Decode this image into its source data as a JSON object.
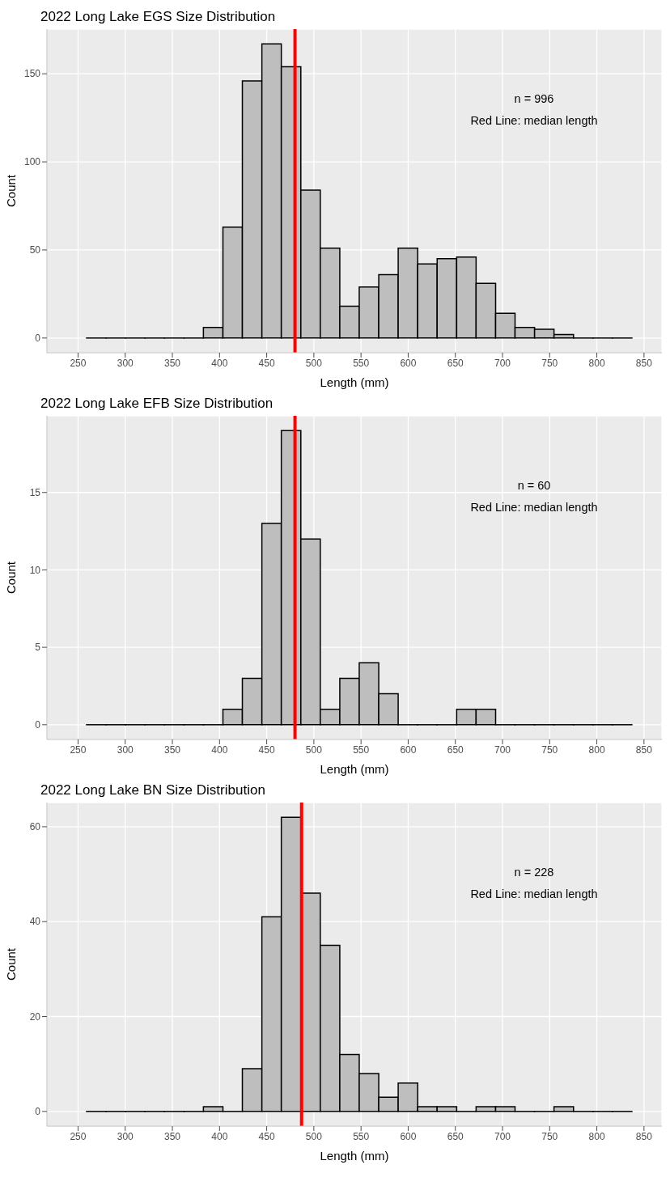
{
  "chart_data": [
    {
      "type": "histogram",
      "title": "2022 Long Lake EGS Size Distribution",
      "xlabel": "Length (mm)",
      "ylabel": "Count",
      "bins": [
        259,
        279.7,
        300.3,
        321,
        341.6,
        362.3,
        382.9,
        403.6,
        424.2,
        444.9,
        465.5,
        486.2,
        506.8,
        527.5,
        548.1,
        568.8,
        589.4,
        610.1,
        630.7,
        651.4,
        672,
        692.7,
        713.3,
        734,
        754.6,
        775.3,
        795.9,
        816.6,
        837.2
      ],
      "values": [
        0,
        0,
        0,
        0,
        0,
        0,
        6,
        63,
        146,
        167,
        154,
        84,
        51,
        18,
        29,
        36,
        51,
        42,
        45,
        46,
        31,
        14,
        6,
        5,
        2,
        0,
        0,
        0
      ],
      "color": "#bebebe",
      "xlim": [
        217,
        869
      ],
      "xticks": [
        250,
        300,
        350,
        400,
        450,
        500,
        550,
        600,
        650,
        700,
        750,
        800,
        850
      ],
      "ylim": [
        -8.35,
        175.35
      ],
      "yticks": [
        0,
        50,
        100,
        150
      ],
      "grid": true,
      "ref_lines": [
        {
          "axis": "x",
          "value": 480,
          "color": "#ff0000"
        }
      ],
      "annotations": [
        "n = 996",
        "Red Line: median length"
      ]
    },
    {
      "type": "histogram",
      "title": "2022 Long Lake EFB Size Distribution",
      "xlabel": "Length (mm)",
      "ylabel": "Count",
      "bins": [
        259,
        279.7,
        300.3,
        321,
        341.6,
        362.3,
        382.9,
        403.6,
        424.2,
        444.9,
        465.5,
        486.2,
        506.8,
        527.5,
        548.1,
        568.8,
        589.4,
        610.1,
        630.7,
        651.4,
        672,
        692.7,
        713.3,
        734,
        754.6,
        775.3,
        795.9,
        816.6,
        837.2
      ],
      "values": [
        0,
        0,
        0,
        0,
        0,
        0,
        0,
        1,
        3,
        13,
        19,
        12,
        1,
        3,
        4,
        2,
        0,
        0,
        0,
        1,
        1,
        0,
        0,
        0,
        0,
        0,
        0,
        0
      ],
      "color": "#bebebe",
      "xlim": [
        217,
        869
      ],
      "xticks": [
        250,
        300,
        350,
        400,
        450,
        500,
        550,
        600,
        650,
        700,
        750,
        800,
        850
      ],
      "ylim": [
        -0.95,
        19.95
      ],
      "yticks": [
        0,
        5,
        10,
        15
      ],
      "grid": true,
      "ref_lines": [
        {
          "axis": "x",
          "value": 480,
          "color": "#ff0000"
        }
      ],
      "annotations": [
        "n = 60",
        "Red Line: median length"
      ]
    },
    {
      "type": "histogram",
      "title": "2022 Long Lake BN Size Distribution",
      "xlabel": "Length (mm)",
      "ylabel": "Count",
      "bins": [
        259,
        279.7,
        300.3,
        321,
        341.6,
        362.3,
        382.9,
        403.6,
        424.2,
        444.9,
        465.5,
        486.2,
        506.8,
        527.5,
        548.1,
        568.8,
        589.4,
        610.1,
        630.7,
        651.4,
        672,
        692.7,
        713.3,
        734,
        754.6,
        775.3,
        795.9,
        816.6,
        837.2
      ],
      "values": [
        0,
        0,
        0,
        0,
        0,
        0,
        1,
        0,
        9,
        41,
        62,
        46,
        35,
        12,
        8,
        3,
        6,
        1,
        1,
        0,
        1,
        1,
        0,
        0,
        1,
        0,
        0,
        0
      ],
      "color": "#bebebe",
      "xlim": [
        217,
        869
      ],
      "xticks": [
        250,
        300,
        350,
        400,
        450,
        500,
        550,
        600,
        650,
        700,
        750,
        800,
        850
      ],
      "ylim": [
        -3.1,
        65.1
      ],
      "yticks": [
        0,
        20,
        40,
        60
      ],
      "grid": true,
      "ref_lines": [
        {
          "axis": "x",
          "value": 487,
          "color": "#ff0000"
        }
      ],
      "annotations": [
        "n = 228",
        "Red Line: median length"
      ]
    }
  ]
}
